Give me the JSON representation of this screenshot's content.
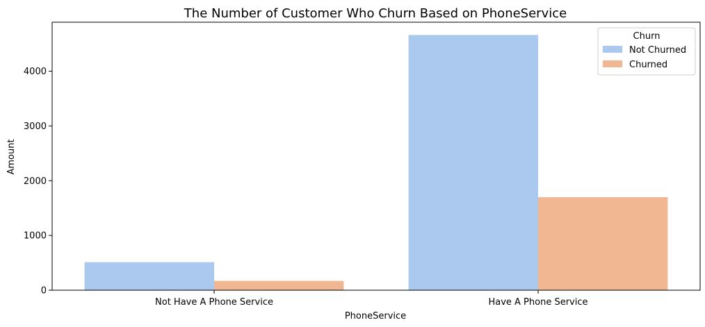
{
  "chart_data": {
    "type": "bar",
    "title": "The Number of Customer Who Churn Based on PhoneService",
    "xlabel": "PhoneService",
    "ylabel": "Amount",
    "categories": [
      "Not Have A Phone Service",
      "Have A Phone Service"
    ],
    "series": [
      {
        "name": "Not Churned",
        "values": [
          512,
          4662
        ],
        "color": "#abc9ee"
      },
      {
        "name": "Churned",
        "values": [
          170,
          1699
        ],
        "color": "#f0b792"
      }
    ],
    "ylim": [
      0,
      4895
    ],
    "yticks": [
      0,
      1000,
      2000,
      3000,
      4000
    ],
    "grid": false,
    "legend": {
      "title": "Churn",
      "placement": "top-right"
    }
  }
}
